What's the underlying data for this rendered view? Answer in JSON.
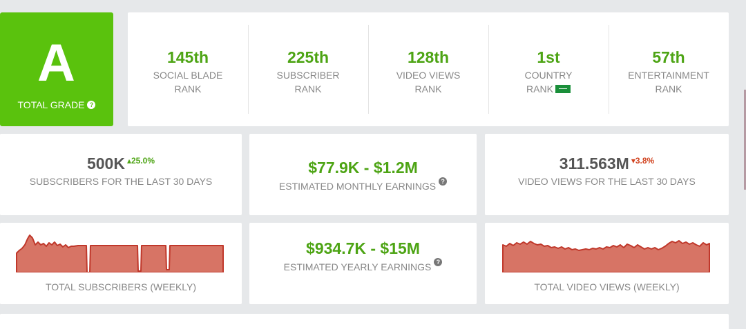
{
  "grade": {
    "letter": "A",
    "label": "TOTAL GRADE",
    "help": "?"
  },
  "ranks": [
    {
      "value": "145th",
      "line1": "SOCIAL BLADE",
      "line2": "RANK"
    },
    {
      "value": "225th",
      "line1": "SUBSCRIBER",
      "line2": "RANK"
    },
    {
      "value": "128th",
      "line1": "VIDEO VIEWS",
      "line2": "RANK"
    },
    {
      "value": "1st",
      "line1": "COUNTRY",
      "line2": "RANK"
    },
    {
      "value": "57th",
      "line1": "ENTERTAINMENT",
      "line2": "RANK"
    }
  ],
  "stats": {
    "subs30": {
      "value": "500K",
      "delta": "25.0%",
      "label": "SUBSCRIBERS FOR THE LAST 30 DAYS"
    },
    "monthly": {
      "value": "$77.9K - $1.2M",
      "label": "ESTIMATED MONTHLY EARNINGS"
    },
    "views30": {
      "value": "311.563M",
      "delta": "3.8%",
      "label": "VIDEO VIEWS FOR THE LAST 30 DAYS"
    },
    "yearly": {
      "value": "$934.7K - $15M",
      "label": "ESTIMATED YEARLY EARNINGS"
    }
  },
  "charts": {
    "subs_label": "TOTAL SUBSCRIBERS (WEEKLY)",
    "views_label": "TOTAL VIDEO VIEWS (WEEKLY)"
  },
  "colors": {
    "accent": "#5ac20d",
    "rank_green": "#4da414",
    "down": "#d1421e",
    "chart_fill": "#d77465",
    "chart_stroke": "#c0382b"
  }
}
